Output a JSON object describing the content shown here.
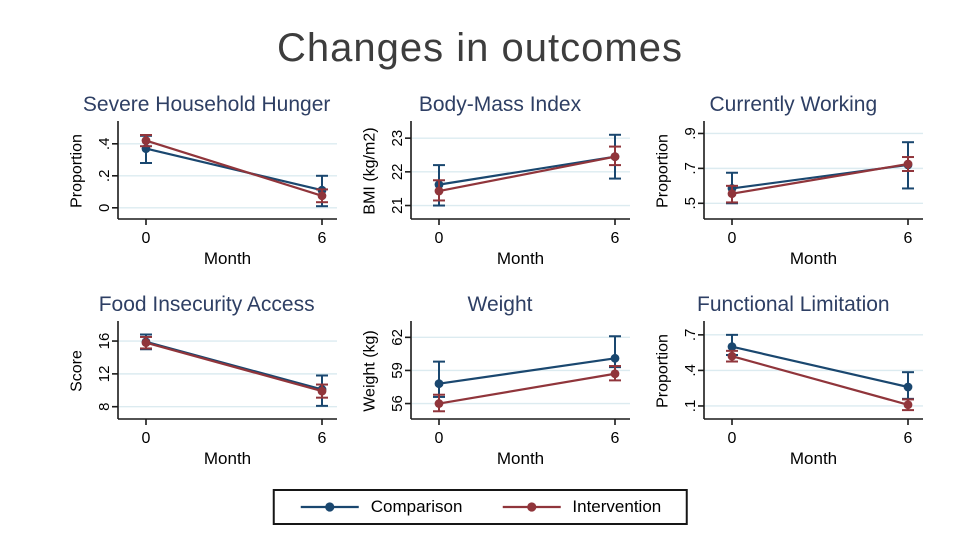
{
  "slide": {
    "title": "Changes in outcomes"
  },
  "colors": {
    "comparison": "#1a476f",
    "intervention": "#90353b",
    "grid": "#dcebf0",
    "axis": "#1a1a1a",
    "text": "#000000",
    "chart_title": "#2e3f64",
    "slide_title": "#3d3d3d"
  },
  "legend": {
    "position": "bottom-center",
    "items": [
      {
        "label": "Comparison",
        "color_key": "comparison"
      },
      {
        "label": "Intervention",
        "color_key": "intervention"
      }
    ]
  },
  "chart_data": [
    {
      "type": "line",
      "title": "Severe Household Hunger",
      "ylabel": "Proportion",
      "xlabel": "Month",
      "x": [
        0,
        6
      ],
      "x_tick_labels": [
        "0",
        "6"
      ],
      "yticks": [
        0,
        0.2,
        0.4
      ],
      "ytick_labels": [
        "0",
        ".2",
        ".4"
      ],
      "ylim": [
        -0.07,
        0.53
      ],
      "grid": true,
      "series": [
        {
          "name": "Comparison",
          "color_key": "comparison",
          "values": [
            0.37,
            0.11
          ],
          "ci_low": [
            0.28,
            0.01
          ],
          "ci_high": [
            0.45,
            0.2
          ]
        },
        {
          "name": "Intervention",
          "color_key": "intervention",
          "values": [
            0.42,
            0.075
          ],
          "ci_low": [
            0.385,
            0.035
          ],
          "ci_high": [
            0.455,
            0.115
          ]
        }
      ]
    },
    {
      "type": "line",
      "title": "Body-Mass Index",
      "ylabel": "BMI (kg/m2)",
      "xlabel": "Month",
      "x": [
        0,
        6
      ],
      "x_tick_labels": [
        "0",
        "6"
      ],
      "yticks": [
        21,
        22,
        23
      ],
      "ytick_labels": [
        "21",
        "22",
        "23"
      ],
      "ylim": [
        20.6,
        23.45
      ],
      "grid": true,
      "series": [
        {
          "name": "Comparison",
          "color_key": "comparison",
          "values": [
            21.62,
            22.45
          ],
          "ci_low": [
            21.0,
            21.8
          ],
          "ci_high": [
            22.2,
            23.1
          ]
        },
        {
          "name": "Intervention",
          "color_key": "intervention",
          "values": [
            21.43,
            22.45
          ],
          "ci_low": [
            21.15,
            22.2
          ],
          "ci_high": [
            21.75,
            22.75
          ]
        }
      ]
    },
    {
      "type": "line",
      "title": "Currently Working",
      "ylabel": "Proportion",
      "xlabel": "Month",
      "x": [
        0,
        6
      ],
      "x_tick_labels": [
        "0",
        "6"
      ],
      "yticks": [
        0.5,
        0.7,
        0.9
      ],
      "ytick_labels": [
        ".5",
        ".7",
        ".9"
      ],
      "ylim": [
        0.41,
        0.96
      ],
      "grid": true,
      "series": [
        {
          "name": "Comparison",
          "color_key": "comparison",
          "values": [
            0.585,
            0.72
          ],
          "ci_low": [
            0.5,
            0.585
          ],
          "ci_high": [
            0.675,
            0.85
          ]
        },
        {
          "name": "Intervention",
          "color_key": "intervention",
          "values": [
            0.555,
            0.725
          ],
          "ci_low": [
            0.505,
            0.685
          ],
          "ci_high": [
            0.6,
            0.765
          ]
        }
      ]
    },
    {
      "type": "line",
      "title": "Food Insecurity Access",
      "ylabel": "Score",
      "xlabel": "Month",
      "x": [
        0,
        6
      ],
      "x_tick_labels": [
        "0",
        "6"
      ],
      "yticks": [
        8,
        12,
        16
      ],
      "ytick_labels": [
        "8",
        "12",
        "16"
      ],
      "ylim": [
        6.5,
        18.2
      ],
      "grid": true,
      "series": [
        {
          "name": "Comparison",
          "color_key": "comparison",
          "values": [
            15.9,
            10.1
          ],
          "ci_low": [
            15.0,
            8.1
          ],
          "ci_high": [
            16.8,
            11.8
          ]
        },
        {
          "name": "Intervention",
          "color_key": "intervention",
          "values": [
            15.8,
            9.9
          ],
          "ci_low": [
            15.1,
            9.1
          ],
          "ci_high": [
            16.5,
            10.7
          ]
        }
      ]
    },
    {
      "type": "line",
      "title": "Weight",
      "ylabel": "Weight (kg)",
      "xlabel": "Month",
      "x": [
        0,
        6
      ],
      "x_tick_labels": [
        "0",
        "6"
      ],
      "yticks": [
        56,
        59,
        62
      ],
      "ytick_labels": [
        "56",
        "59",
        "62"
      ],
      "ylim": [
        54.6,
        63.3
      ],
      "grid": true,
      "series": [
        {
          "name": "Comparison",
          "color_key": "comparison",
          "values": [
            57.8,
            60.1
          ],
          "ci_low": [
            56.6,
            59.3
          ],
          "ci_high": [
            59.8,
            62.1
          ]
        },
        {
          "name": "Intervention",
          "color_key": "intervention",
          "values": [
            56.0,
            58.7
          ],
          "ci_low": [
            55.3,
            58.1
          ],
          "ci_high": [
            56.8,
            59.4
          ]
        }
      ]
    },
    {
      "type": "line",
      "title": "Functional Limitation",
      "ylabel": "Proportion",
      "xlabel": "Month",
      "x": [
        0,
        6
      ],
      "x_tick_labels": [
        "0",
        "6"
      ],
      "yticks": [
        0.1,
        0.4,
        0.7
      ],
      "ytick_labels": [
        ".1",
        ".4",
        ".7"
      ],
      "ylim": [
        -0.01,
        0.8
      ],
      "grid": true,
      "series": [
        {
          "name": "Comparison",
          "color_key": "comparison",
          "values": [
            0.6,
            0.26
          ],
          "ci_low": [
            0.53,
            0.16
          ],
          "ci_high": [
            0.7,
            0.385
          ]
        },
        {
          "name": "Intervention",
          "color_key": "intervention",
          "values": [
            0.52,
            0.11
          ],
          "ci_low": [
            0.475,
            0.065
          ],
          "ci_high": [
            0.565,
            0.155
          ]
        }
      ]
    }
  ]
}
